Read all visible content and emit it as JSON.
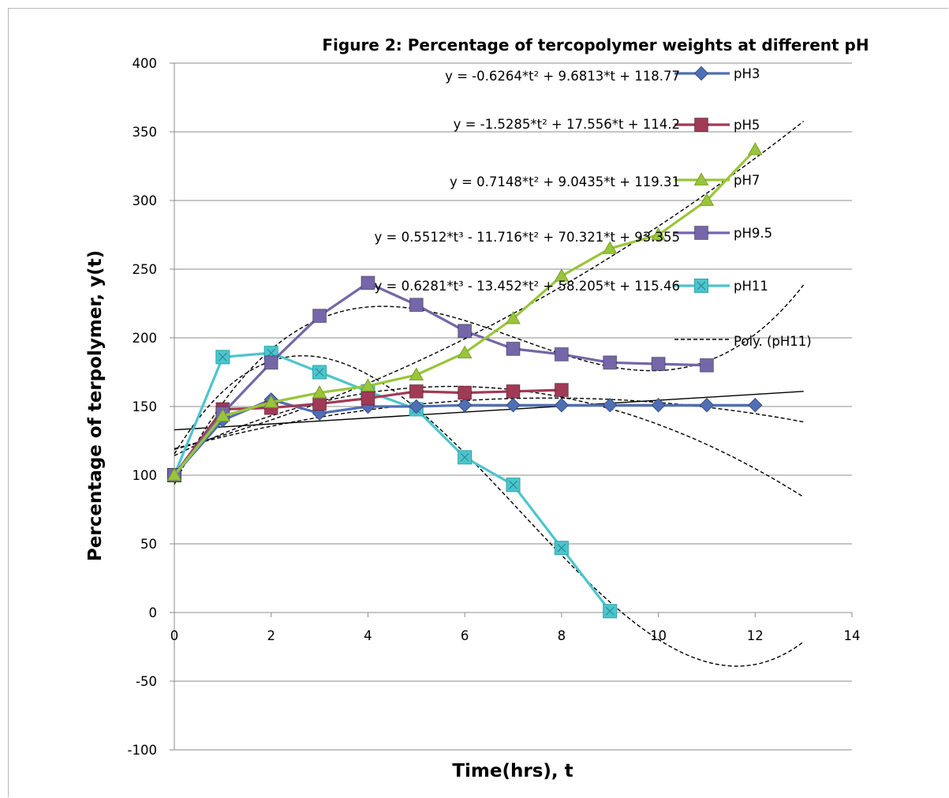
{
  "chart_data": {
    "type": "line",
    "title": "Figure 2: Percentage of tercopolymer weights at different pH",
    "xlabel": "Time(hrs), t",
    "ylabel": "Percentage of terpolymer, y(t)",
    "xlim": [
      0,
      14
    ],
    "ylim": [
      -100,
      400
    ],
    "xticks": [
      0,
      2,
      4,
      6,
      8,
      10,
      12,
      14
    ],
    "yticks": [
      -100,
      -50,
      0,
      50,
      100,
      150,
      200,
      250,
      300,
      350,
      400
    ],
    "grid": "horizontal",
    "legend_position": "right",
    "series": [
      {
        "name": "pH3",
        "color": "#4f6fb5",
        "marker": "diamond",
        "x": [
          0,
          1,
          2,
          3,
          4,
          5,
          6,
          7,
          8,
          9,
          10,
          11,
          12
        ],
        "y": [
          100,
          140,
          155,
          145,
          150,
          150,
          151,
          151,
          151,
          151,
          151,
          151,
          151
        ]
      },
      {
        "name": "pH5",
        "color": "#a03a55",
        "marker": "square",
        "x": [
          0,
          1,
          2,
          3,
          4,
          5,
          6,
          7,
          8
        ],
        "y": [
          100,
          148,
          149,
          152,
          156,
          161,
          160,
          161,
          162
        ]
      },
      {
        "name": "pH7",
        "color": "#99c53a",
        "marker": "triangle",
        "x": [
          0,
          1,
          2,
          3,
          4,
          5,
          6,
          7,
          8,
          9,
          10,
          11,
          12
        ],
        "y": [
          100,
          143,
          153,
          160,
          165,
          173,
          189,
          214,
          245,
          265,
          275,
          300,
          337
        ]
      },
      {
        "name": "pH9.5",
        "color": "#7466a8",
        "marker": "square",
        "x": [
          0,
          1,
          2,
          3,
          4,
          5,
          6,
          7,
          8,
          9,
          10,
          11
        ],
        "y": [
          100,
          145,
          182,
          216,
          240,
          224,
          205,
          192,
          188,
          182,
          181,
          180
        ]
      },
      {
        "name": "pH11",
        "color": "#4cc5cd",
        "marker": "square-x",
        "x": [
          0,
          1,
          2,
          3,
          4,
          5,
          6,
          7,
          8,
          9
        ],
        "y": [
          100,
          186,
          189,
          175,
          161,
          148,
          113,
          93,
          47,
          1
        ]
      }
    ],
    "trendlines": [
      {
        "equation": "y = -0.6264*t² + 9.6813*t + 118.77",
        "coefficients": [
          118.77,
          9.6813,
          -0.6264
        ],
        "x_range": [
          0,
          13
        ]
      },
      {
        "equation": "y = -1.5285*t² + 17.556*t + 114.2",
        "coefficients": [
          114.2,
          17.556,
          -1.5285
        ],
        "x_range": [
          0,
          13
        ]
      },
      {
        "equation": "y = 0.7148*t² + 9.0435*t + 119.31",
        "coefficients": [
          119.31,
          9.0435,
          0.7148
        ],
        "x_range": [
          0,
          13
        ]
      },
      {
        "equation": "y = 0.5512*t³ - 11.716*t² + 70.321*t + 93.355",
        "coefficients": [
          93.355,
          70.321,
          -11.716,
          0.5512
        ],
        "x_range": [
          0,
          13
        ]
      },
      {
        "equation": "y = 0.6281*t³ - 13.452*t² + 58.205*t + 115.46",
        "coefficients": [
          115.46,
          58.205,
          -13.452,
          0.6281
        ],
        "x_range": [
          0,
          13
        ]
      }
    ],
    "linear_trend": {
      "x": [
        0,
        13
      ],
      "y": [
        133,
        161
      ]
    },
    "legend_trend_label": "Poly. (pH11)"
  }
}
